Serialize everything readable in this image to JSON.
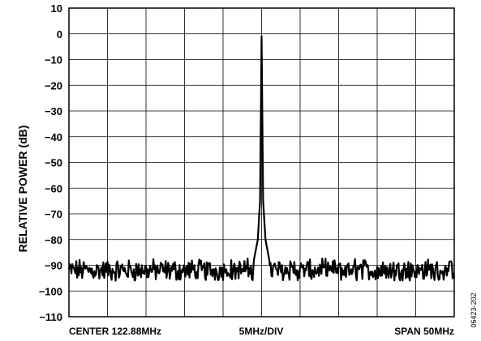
{
  "chart_data": {
    "type": "line",
    "ylabel": "RELATIVE POWER (dB)",
    "ylim": [
      -110,
      10
    ],
    "yticks": [
      "10",
      "0",
      "−10",
      "−20",
      "−30",
      "−40",
      "−50",
      "−60",
      "−70",
      "−80",
      "−90",
      "−100",
      "−110"
    ],
    "xlim": [
      97.88,
      147.88
    ],
    "x_divisions": 10,
    "grid": true,
    "bottom_labels": {
      "left": "CENTER 122.88MHz",
      "center": "5MHz/DIV",
      "right": "SPAN 50MHz"
    },
    "figure_id": "06423-202",
    "series": [
      {
        "noise_floor_db": -92,
        "noise_range_db": [
          -96,
          -86
        ],
        "peak_x": 122.88,
        "peak_db": -1,
        "peak_points": [
          {
            "x": 121.88,
            "y": -88
          },
          {
            "x": 122.38,
            "y": -80
          },
          {
            "x": 122.68,
            "y": -65
          },
          {
            "x": 122.88,
            "y": -1
          },
          {
            "x": 123.08,
            "y": -65
          },
          {
            "x": 123.38,
            "y": -80
          },
          {
            "x": 123.88,
            "y": -88
          }
        ]
      }
    ]
  }
}
